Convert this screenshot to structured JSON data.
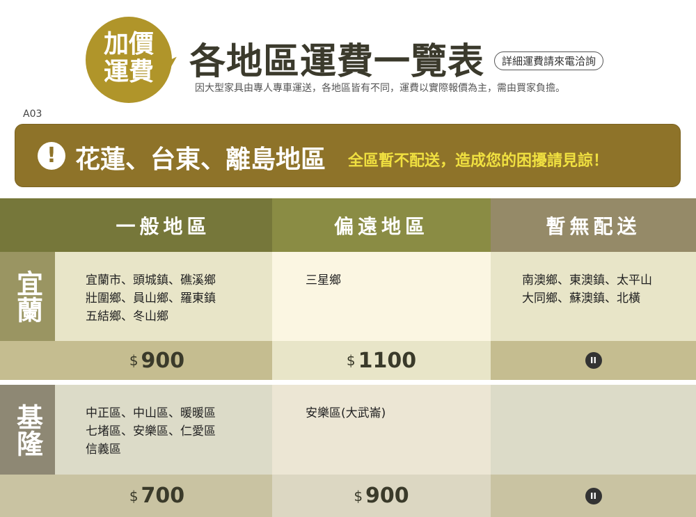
{
  "badge": {
    "line1": "加價",
    "line2": "運費"
  },
  "title": "各地區運費一覽表",
  "contact": "詳細運費請來電洽詢",
  "subtitle": "因大型家具由專人專車運送，各地區皆有不同，運費以實際報價為主，需由買家負擔。",
  "code": "A03",
  "banner": {
    "icon": "exclamation-icon",
    "main": "花蓮、台東、離島地區",
    "note": "全區暫不配送，造成您的困擾請見諒！"
  },
  "columns": [
    "一般地區",
    "偏遠地區",
    "暫無配送"
  ],
  "rows": [
    {
      "region": "宜蘭",
      "general": [
        "宜蘭市、頭城鎮、礁溪鄉",
        "壯圍鄉、員山鄉、羅東鎮",
        "五結鄉、冬山鄉"
      ],
      "remote": [
        "三星鄉"
      ],
      "none": [
        "南澳鄉、東澳鎮、太平山",
        "大同鄉、蘇澳鎮、北橫"
      ],
      "price_general": "900",
      "price_remote": "1100",
      "none_icon": "pause-icon"
    },
    {
      "region": "基隆",
      "general": [
        "中正區、中山區、暖暖區",
        "七堵區、安樂區、仁愛區",
        "信義區"
      ],
      "remote": [
        "安樂區(大武崙)"
      ],
      "none": [],
      "price_general": "700",
      "price_remote": "900",
      "none_icon": "pause-icon"
    }
  ],
  "currency": "$",
  "colors": {
    "gold": "#b0952a",
    "banner": "#8e7329",
    "highlight": "#f0e040"
  }
}
